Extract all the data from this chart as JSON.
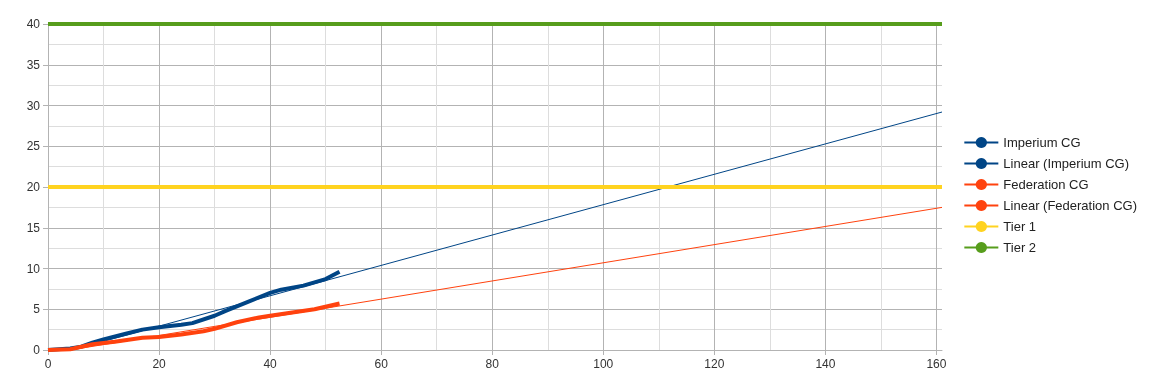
{
  "chart_data": {
    "type": "line",
    "xlim": [
      0,
      161
    ],
    "xticks": [
      0,
      20,
      40,
      60,
      80,
      100,
      120,
      140,
      160
    ],
    "ylim": [
      0,
      40
    ],
    "yticks": [
      0,
      5,
      10,
      15,
      20,
      25,
      30,
      35,
      40
    ],
    "grid": true,
    "legend": "right",
    "marker": "none",
    "series": [
      {
        "name": "Imperium CG",
        "color": "#004586",
        "x": [
          0,
          4,
          6,
          8,
          10,
          14,
          17,
          20,
          24,
          26,
          30,
          32,
          36,
          40,
          42,
          46,
          50,
          52.5
        ],
        "values": [
          0,
          0.2,
          0.4,
          0.9,
          1.3,
          2.0,
          2.5,
          2.8,
          3.1,
          3.3,
          4.2,
          4.8,
          5.9,
          7.0,
          7.4,
          7.9,
          8.7,
          9.6
        ]
      },
      {
        "name": "Linear (Imperium CG)",
        "color": "#004586",
        "x": [
          4.3,
          161
        ],
        "values": [
          0,
          29.2
        ]
      },
      {
        "name": "Federation CG",
        "color": "#ff420e",
        "x": [
          0,
          4,
          8,
          12,
          17,
          20,
          24,
          28,
          30,
          34,
          38,
          40,
          44,
          48,
          52.5
        ],
        "values": [
          0,
          0.1,
          0.7,
          1.0,
          1.5,
          1.6,
          1.9,
          2.3,
          2.6,
          3.4,
          4.0,
          4.2,
          4.6,
          5.0,
          5.7
        ]
      },
      {
        "name": "Linear (Federation CG)",
        "color": "#ff420e",
        "x": [
          4,
          161
        ],
        "values": [
          0,
          17.5
        ]
      },
      {
        "name": "Tier 1",
        "color": "#ffd320",
        "x": [
          0,
          161
        ],
        "values": [
          20,
          20
        ]
      },
      {
        "name": "Tier 2",
        "color": "#579d1c",
        "x": [
          0,
          161
        ],
        "values": [
          40,
          40
        ]
      }
    ]
  }
}
